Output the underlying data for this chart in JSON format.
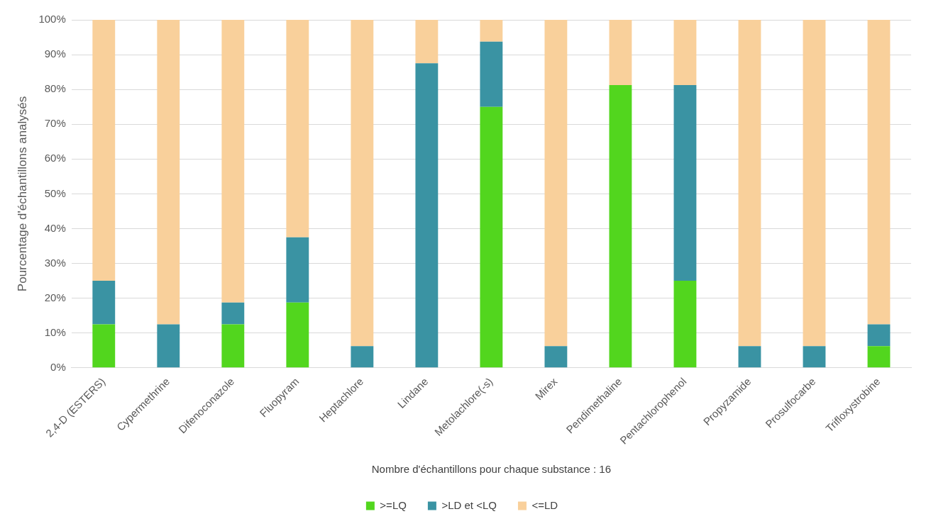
{
  "chart_data": {
    "type": "bar",
    "stacked": true,
    "xlabel": "Nombre d'échantillons pour chaque substance : 16",
    "ylabel": "Pourcentage d'échantillons analysés",
    "categories": [
      "2,4-D (ESTERS)",
      "Cypermethrine",
      "Difenoconazole",
      "Fluopyram",
      "Heptachlore",
      "Lindane",
      "Metolachlore(-s)",
      "Mirex",
      "Pendimethaline",
      "Pentachlorophenol",
      "Propyzamide",
      "Prosulfocarbe",
      "Trifloxystrobine"
    ],
    "series": [
      {
        "name": ">=LQ",
        "color": "#52d61e",
        "values": [
          12.5,
          0,
          12.5,
          18.75,
          0,
          0,
          75,
          0,
          81.25,
          25,
          0,
          0,
          6.25
        ]
      },
      {
        "name": ">LD et <LQ",
        "color": "#3a93a3",
        "values": [
          12.5,
          12.5,
          6.25,
          18.75,
          6.25,
          87.5,
          18.75,
          6.25,
          0,
          56.25,
          6.25,
          6.25,
          6.25
        ]
      },
      {
        "name": "<=LD",
        "color": "#f9d09b",
        "values": [
          75,
          87.5,
          81.25,
          62.5,
          93.75,
          12.5,
          6.25,
          93.75,
          18.75,
          18.75,
          93.75,
          93.75,
          87.5
        ]
      }
    ],
    "ylim": [
      0,
      100
    ],
    "yticks": [
      {
        "value": 0,
        "label": "0%"
      },
      {
        "value": 10,
        "label": "10%"
      },
      {
        "value": 20,
        "label": "20%"
      },
      {
        "value": 30,
        "label": "30%"
      },
      {
        "value": 40,
        "label": "40%"
      },
      {
        "value": 50,
        "label": "50%"
      },
      {
        "value": 60,
        "label": "60%"
      },
      {
        "value": 70,
        "label": "70%"
      },
      {
        "value": 80,
        "label": "80%"
      },
      {
        "value": 90,
        "label": "90%"
      },
      {
        "value": 100,
        "label": "100%"
      }
    ],
    "grid": "y",
    "legend": "bottom"
  }
}
